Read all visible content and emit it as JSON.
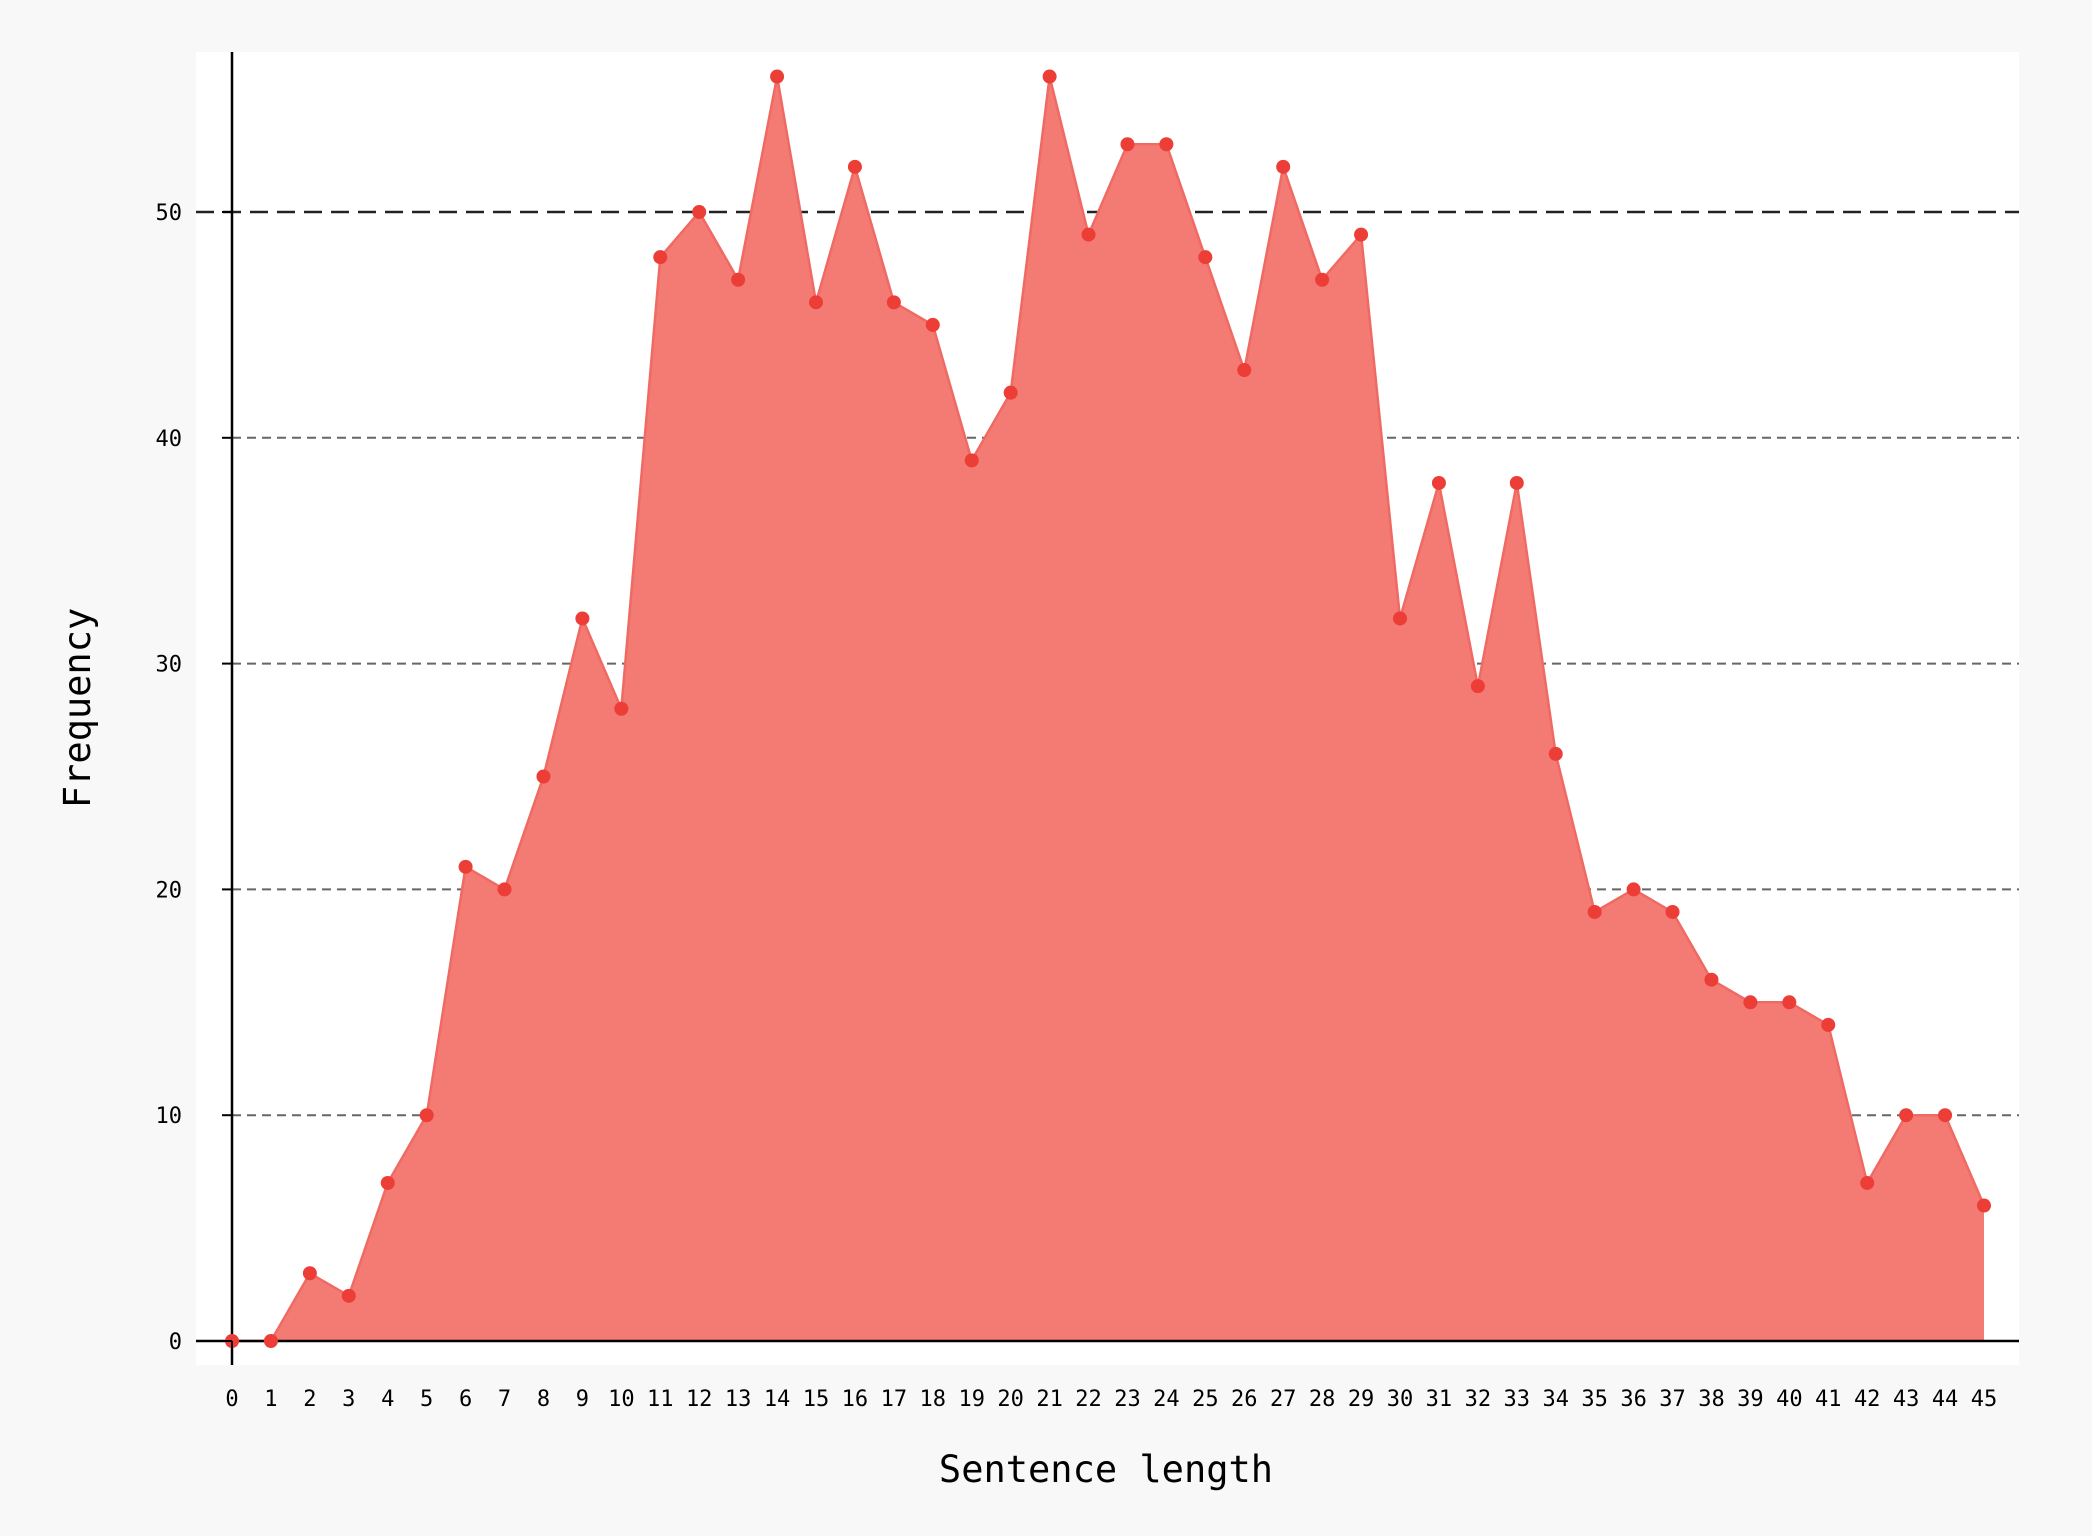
{
  "chart_data": {
    "type": "area",
    "title": "",
    "xlabel": "Sentence length",
    "ylabel": "Frequency",
    "x": [
      0,
      1,
      2,
      3,
      4,
      5,
      6,
      7,
      8,
      9,
      10,
      11,
      12,
      13,
      14,
      15,
      16,
      17,
      18,
      19,
      20,
      21,
      22,
      23,
      24,
      25,
      26,
      27,
      28,
      29,
      30,
      31,
      32,
      33,
      34,
      35,
      36,
      37,
      38,
      39,
      40,
      41,
      42,
      43,
      44,
      45
    ],
    "series": [
      {
        "values": [
          0,
          0,
          3,
          2,
          7,
          10,
          21,
          20,
          25,
          32,
          28,
          48,
          50,
          47,
          56,
          46,
          52,
          46,
          45,
          39,
          42,
          56,
          49,
          53,
          53,
          48,
          43,
          52,
          47,
          49,
          32,
          38,
          29,
          38,
          26,
          19,
          20,
          19,
          16,
          15,
          15,
          14,
          7,
          10,
          10,
          6
        ]
      }
    ],
    "xticks": [
      "0",
      "1",
      "2",
      "3",
      "4",
      "5",
      "6",
      "7",
      "8",
      "9",
      "10",
      "11",
      "12",
      "13",
      "14",
      "15",
      "16",
      "17",
      "18",
      "19",
      "20",
      "21",
      "22",
      "23",
      "24",
      "25",
      "26",
      "27",
      "28",
      "29",
      "30",
      "31",
      "32",
      "33",
      "34",
      "35",
      "36",
      "37",
      "38",
      "39",
      "40",
      "41",
      "42",
      "43",
      "44",
      "45"
    ],
    "yticks": [
      "0",
      "10",
      "20",
      "30",
      "40",
      "50"
    ],
    "ytick_values": [
      0,
      10,
      20,
      30,
      40,
      50
    ],
    "xlim": [
      0,
      45
    ],
    "ylim": [
      -1.1,
      57.1
    ],
    "reference_line_y": 50,
    "grid": "horizontal dashed",
    "legend": "none",
    "colors": {
      "fill": "#f47a74",
      "line": "#ef6a63",
      "marker": "#ec3d36",
      "plot_bg": "#ffffff",
      "page_bg": "#f8f8f8",
      "grid": "#666666",
      "ref_line": "#222222",
      "axis": "#000000"
    }
  }
}
